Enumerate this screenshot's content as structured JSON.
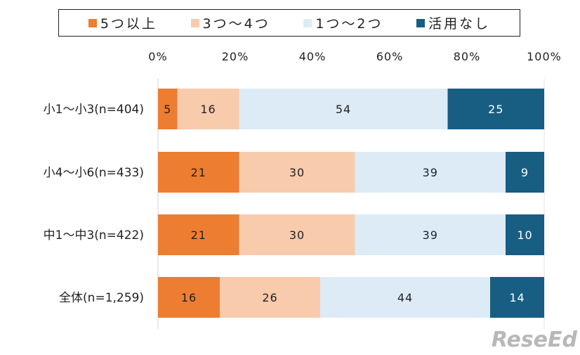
{
  "chart_data": {
    "type": "bar",
    "orientation": "horizontal",
    "stacked": "100%",
    "categories": [
      "小1〜小3(n=404)",
      "小4〜小6(n=433)",
      "中1〜中3(n=422)",
      "全体(n=1,259)"
    ],
    "series": [
      {
        "name": "5つ以上",
        "color": "#ED7D31",
        "label_color": "#222222",
        "values": [
          5,
          21,
          21,
          16
        ]
      },
      {
        "name": "3つ〜4つ",
        "color": "#F8CBAD",
        "label_color": "#222222",
        "values": [
          16,
          30,
          30,
          26
        ]
      },
      {
        "name": "1つ〜2つ",
        "color": "#DDEBF7",
        "label_color": "#222222",
        "values": [
          54,
          39,
          39,
          44
        ]
      },
      {
        "name": "活用なし",
        "color": "#175E82",
        "label_color": "#FFFFFF",
        "values": [
          25,
          9,
          10,
          14
        ]
      }
    ],
    "xlim": [
      0,
      100
    ],
    "x_ticks": [
      "0%",
      "20%",
      "40%",
      "60%",
      "80%",
      "100%"
    ],
    "x_axis_position": "top",
    "legend_position": "top",
    "grid": false
  },
  "watermark": "ReseEd"
}
